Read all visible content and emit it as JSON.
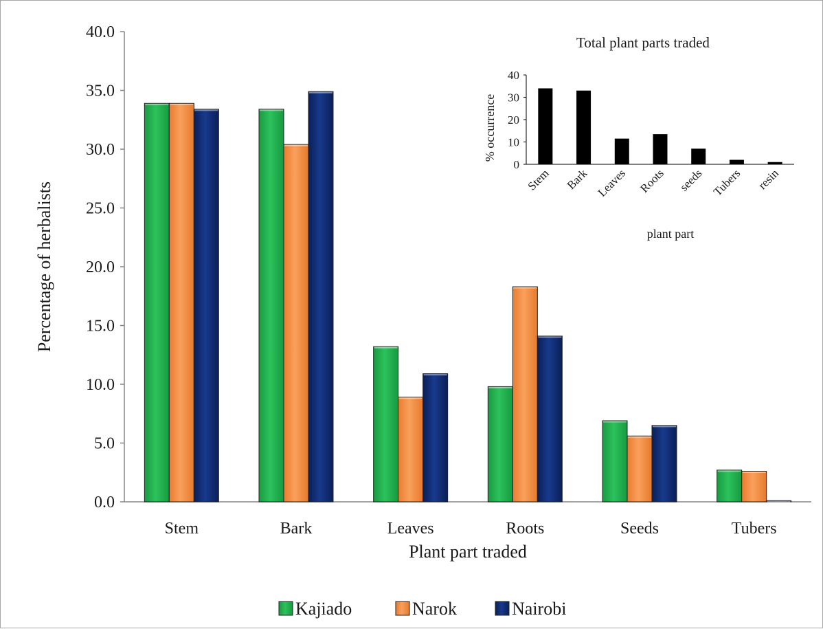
{
  "chart_data": [
    {
      "type": "bar",
      "title": "",
      "xlabel": "Plant part traded",
      "ylabel": "Percentage of herbalists",
      "ylim": [
        0,
        40
      ],
      "yticks": [
        "0.0",
        "5.0",
        "10.0",
        "15.0",
        "20.0",
        "25.0",
        "30.0",
        "35.0",
        "40.0"
      ],
      "categories": [
        "Stem",
        "Bark",
        "Leaves",
        "Roots",
        "Seeds",
        "Tubers"
      ],
      "series": [
        {
          "name": "Kajiado",
          "values": [
            33.9,
            33.4,
            13.2,
            9.8,
            6.9,
            2.7
          ]
        },
        {
          "name": "Narok",
          "values": [
            33.9,
            30.4,
            8.9,
            18.3,
            5.6,
            2.6
          ]
        },
        {
          "name": "Nairobi",
          "values": [
            33.4,
            34.9,
            10.9,
            14.1,
            6.5,
            0.1
          ]
        }
      ],
      "colors": {
        "Kajiado": "#21b24e",
        "Narok": "#f38a3c",
        "Nairobi": "#102a6e"
      },
      "legend_position": "bottom",
      "grid": false
    },
    {
      "type": "bar",
      "title": "Total plant  parts traded",
      "xlabel": "plant part",
      "ylabel": "% occurrence",
      "ylim": [
        0,
        40
      ],
      "yticks": [
        "0",
        "10",
        "20",
        "30",
        "40"
      ],
      "categories": [
        "Stem",
        "Bark",
        "Leaves",
        "Roots",
        "seeds",
        "Tubers",
        "resin"
      ],
      "values": [
        34,
        33,
        11.5,
        13.5,
        7,
        2,
        1
      ],
      "color": "#000000",
      "grid": false
    }
  ]
}
